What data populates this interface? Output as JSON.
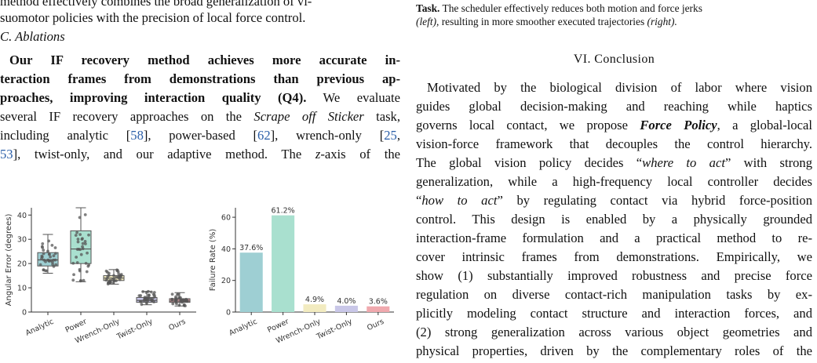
{
  "left_column": {
    "top_lines": [
      "method effectively combines the broad generalization of vi-",
      "suomotor policies with the precision of local force control."
    ],
    "subsection_heading": "C. Ablations",
    "para_bold_lines": [
      "Our IF recovery method achieves more accurate in-",
      "teraction frames from demonstrations than previous ap-",
      "proaches, improving interaction quality (Q4)."
    ],
    "para_rest_first": " We evaluate",
    "para_lines": {
      "l4_a": "several IF recovery approaches on the ",
      "l4_task": "Scrape off Sticker",
      "l4_b": " task,",
      "l5_a": "including analytic [",
      "l5_c1": "58",
      "l5_b": "], power-based [",
      "l5_c2": "62",
      "l5_c": "], wrench-only [",
      "l5_c3": "25",
      "l5_d": ",",
      "l6_c4": "53",
      "l6_a": "], twist-only, and our adaptive method. The ",
      "l6_z": "z",
      "l6_b": "-axis of the"
    }
  },
  "right_column": {
    "caption_line1_bold": "Task.",
    "caption_line1_rest": " The scheduler effectively reduces both motion and force jerks",
    "caption_line2_italic_a": "(left)",
    "caption_line2_mid": ", resulting in more smoother executed trajectories ",
    "caption_line2_italic_b": "(right).",
    "section_heading": "VI. Conclusion",
    "lines": [
      "Motivated by the biological division of labor where vision",
      "guides global decision-making and reaching while haptics",
      "governs local contact, we propose ",
      "vision-force framework that decouples the control hierarchy.",
      "The global vision policy decides “",
      "generalization, while a high-frequency local controller decides",
      "“",
      "control. This design is enabled by a physically grounded",
      "interaction-frame formulation and a practical method to re-",
      "cover intrinsic frames from demonstrations. Empirically, we",
      "show (1) substantially improved robustness and precise force",
      "regulation on diverse contact-rich manipulation tasks by ex-",
      "plicitly modeling contact structure and interaction forces, and",
      "(2) strong generalization across various object geometries and",
      "physical properties, driven by the complementary roles of the"
    ],
    "force_policy": "Force Policy",
    "line3_rest": ", a global-local",
    "where_to_act": "where to act",
    "line5_rest": "” with strong",
    "how_to_act": "how to act",
    "line7_rest": "” by regulating contact via hybrid force-position"
  },
  "chart_data": [
    {
      "type": "box",
      "ylabel": "Angular Error (degrees)",
      "ylim": [
        0,
        43
      ],
      "yticks": [
        0,
        10,
        20,
        30,
        40
      ],
      "categories": [
        "Analytic",
        "Power",
        "Wrench-Only",
        "Twist-Only",
        "Ours"
      ],
      "colors": [
        "#9ecfd3",
        "#a9e0cf",
        "#f2ebc0",
        "#c9c7e8",
        "#f0a9ae"
      ],
      "boxes": [
        {
          "min": 16,
          "q1": 19,
          "median": 21.5,
          "q3": 24.5,
          "max": 32
        },
        {
          "min": 12.5,
          "q1": 20,
          "median": 26,
          "q3": 33.5,
          "max": 43
        },
        {
          "min": 11.5,
          "q1": 13,
          "median": 14,
          "q3": 15,
          "max": 17.5
        },
        {
          "min": 3,
          "q1": 4,
          "median": 4.8,
          "q3": 6,
          "max": 8.5
        },
        {
          "min": 2.5,
          "q1": 4,
          "median": 4.5,
          "q3": 5.5,
          "max": 8
        }
      ]
    },
    {
      "type": "bar",
      "ylabel": "Failure Rate (%)",
      "ylim": [
        0,
        66
      ],
      "yticks": [
        0,
        20,
        40,
        60
      ],
      "categories": [
        "Analytic",
        "Power",
        "Wrench-Only",
        "Twist-Only",
        "Ours"
      ],
      "values": [
        37.6,
        61.2,
        4.9,
        4.0,
        3.6
      ],
      "data_labels": [
        "37.6%",
        "61.2%",
        "4.9%",
        "4.0%",
        "3.6%"
      ],
      "colors": [
        "#9ecfd3",
        "#a9e0cf",
        "#f2ebc0",
        "#c9c7e8",
        "#f0a9ae"
      ]
    }
  ]
}
